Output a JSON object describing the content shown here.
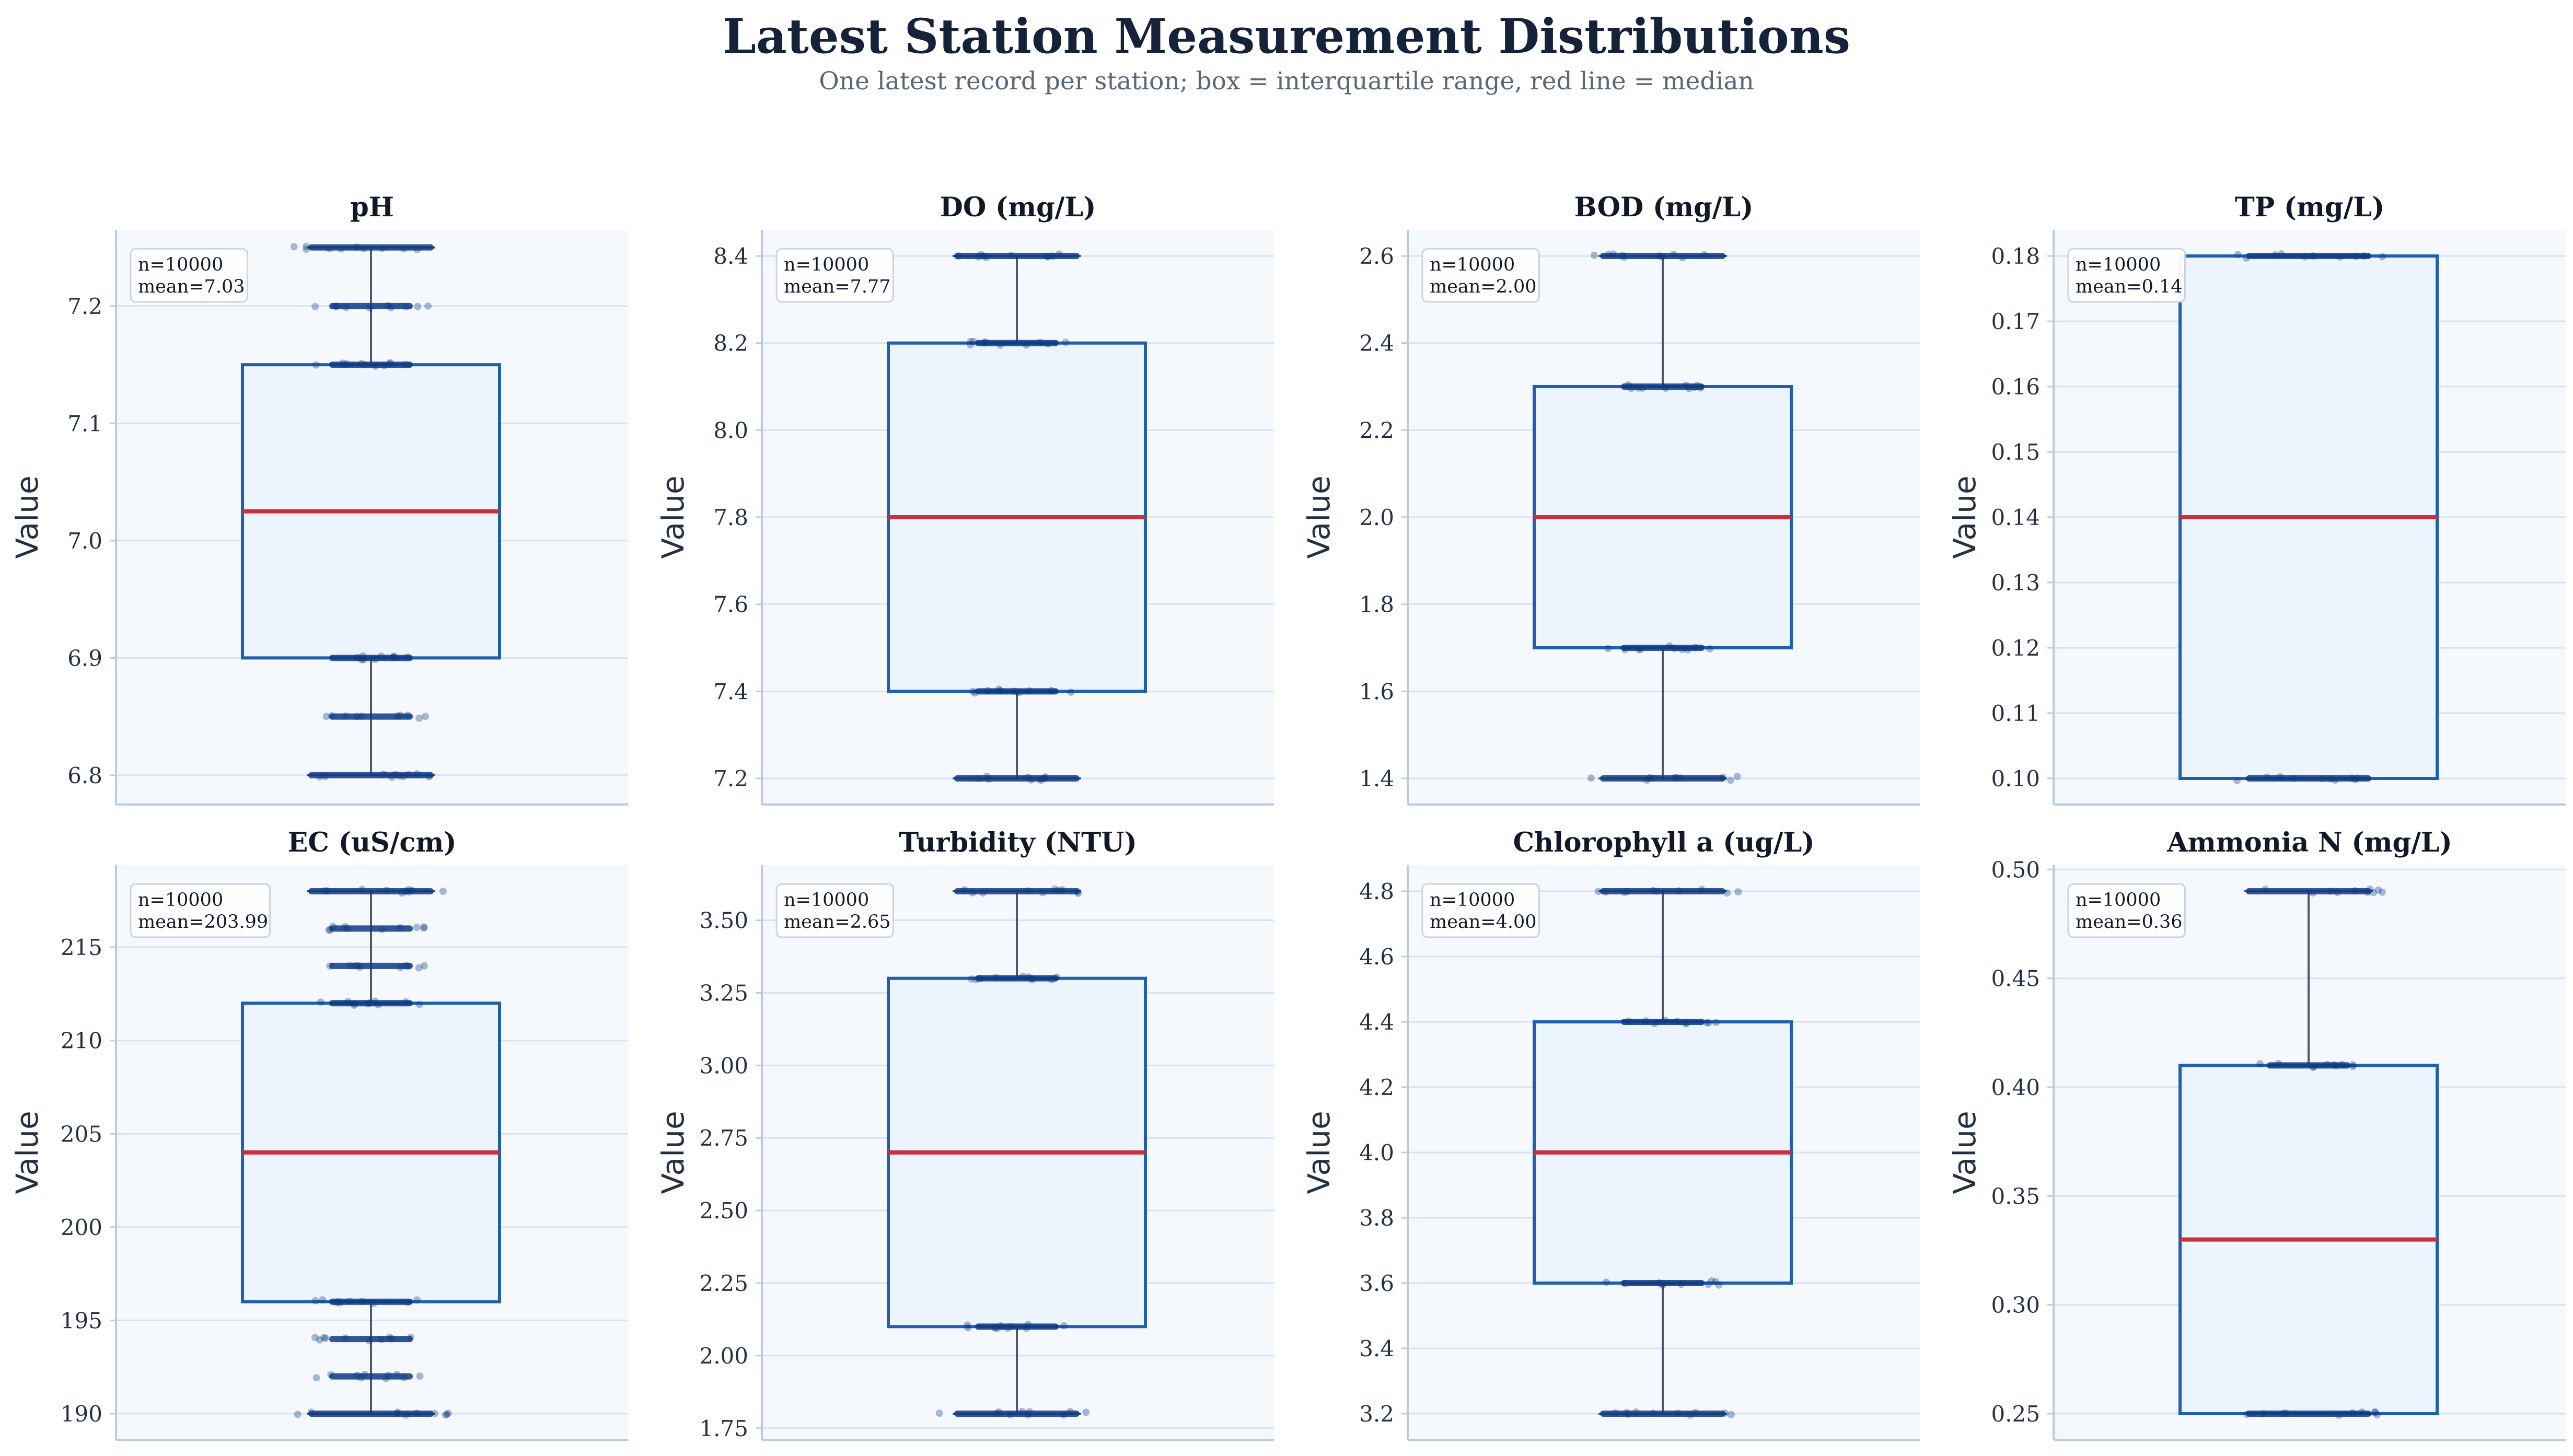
{
  "title": "Latest Station Measurement Distributions",
  "subtitle": "One latest record per station; box = interquartile range, red line = median",
  "colors": {
    "panel_bg": "#f5f9fe",
    "grid": "#d7e3f0",
    "axis": "#b9cbe0",
    "box_fill": "#ecf4fd",
    "box_edge": "#1f5fae",
    "median": "#c8313b",
    "whisker": "#4a5a6e",
    "point": "#0d3a82"
  },
  "chart_data": [
    {
      "type": "box",
      "title": "pH",
      "ylabel": "Value",
      "ylim": [
        6.775,
        7.265
      ],
      "yticks": [
        6.8,
        6.9,
        7.0,
        7.1,
        7.2
      ],
      "tick_decimals": 1,
      "n": 10000,
      "mean": 7.03,
      "n_text": "n=10000",
      "mean_text": "mean=7.03",
      "min": 6.8,
      "q1": 6.9,
      "median": 7.025,
      "q3": 7.15,
      "max": 7.25,
      "levels": [
        6.8,
        6.85,
        6.9,
        7.15,
        7.2,
        7.25
      ]
    },
    {
      "type": "box",
      "title": "DO (mg/L)",
      "ylabel": "Value",
      "ylim": [
        7.14,
        8.46
      ],
      "yticks": [
        7.2,
        7.4,
        7.6,
        7.8,
        8.0,
        8.2,
        8.4
      ],
      "tick_decimals": 1,
      "n": 10000,
      "mean": 7.77,
      "n_text": "n=10000",
      "mean_text": "mean=7.77",
      "min": 7.2,
      "q1": 7.4,
      "median": 7.8,
      "q3": 8.2,
      "max": 8.4,
      "levels": [
        7.2,
        7.4,
        8.2,
        8.4
      ]
    },
    {
      "type": "box",
      "title": "BOD (mg/L)",
      "ylabel": "Value",
      "ylim": [
        1.34,
        2.66
      ],
      "yticks": [
        1.4,
        1.6,
        1.8,
        2.0,
        2.2,
        2.4,
        2.6
      ],
      "tick_decimals": 1,
      "n": 10000,
      "mean": 2.0,
      "n_text": "n=10000",
      "mean_text": "mean=2.00",
      "min": 1.4,
      "q1": 1.7,
      "median": 2.0,
      "q3": 2.3,
      "max": 2.6,
      "levels": [
        1.4,
        1.7,
        2.3,
        2.6
      ]
    },
    {
      "type": "box",
      "title": "TP (mg/L)",
      "ylabel": "Value",
      "ylim": [
        0.096,
        0.184
      ],
      "yticks": [
        0.1,
        0.11,
        0.12,
        0.13,
        0.14,
        0.15,
        0.16,
        0.17,
        0.18
      ],
      "tick_decimals": 2,
      "n": 10000,
      "mean": 0.14,
      "n_text": "n=10000",
      "mean_text": "mean=0.14",
      "min": 0.1,
      "q1": 0.1,
      "median": 0.14,
      "q3": 0.18,
      "max": 0.18,
      "levels": [
        0.1,
        0.18
      ]
    },
    {
      "type": "box",
      "title": "EC (uS/cm)",
      "ylabel": "Value",
      "ylim": [
        188.6,
        219.4
      ],
      "yticks": [
        190,
        195,
        200,
        205,
        210,
        215
      ],
      "tick_decimals": 0,
      "n": 10000,
      "mean": 203.99,
      "n_text": "n=10000",
      "mean_text": "mean=203.99",
      "min": 190,
      "q1": 196,
      "median": 204,
      "q3": 212,
      "max": 218,
      "levels": [
        190,
        192,
        194,
        196,
        212,
        214,
        216,
        218
      ]
    },
    {
      "type": "box",
      "title": "Turbidity (NTU)",
      "ylabel": "Value",
      "ylim": [
        1.71,
        3.69
      ],
      "yticks": [
        1.75,
        2.0,
        2.25,
        2.5,
        2.75,
        3.0,
        3.25,
        3.5
      ],
      "tick_decimals": 2,
      "n": 10000,
      "mean": 2.65,
      "n_text": "n=10000",
      "mean_text": "mean=2.65",
      "min": 1.8,
      "q1": 2.1,
      "median": 2.7,
      "q3": 3.3,
      "max": 3.6,
      "levels": [
        1.8,
        2.1,
        3.3,
        3.6
      ]
    },
    {
      "type": "box",
      "title": "Chlorophyll a (ug/L)",
      "ylabel": "Value",
      "ylim": [
        3.12,
        4.88
      ],
      "yticks": [
        3.2,
        3.4,
        3.6,
        3.8,
        4.0,
        4.2,
        4.4,
        4.6,
        4.8
      ],
      "tick_decimals": 1,
      "n": 10000,
      "mean": 4.0,
      "n_text": "n=10000",
      "mean_text": "mean=4.00",
      "min": 3.2,
      "q1": 3.6,
      "median": 4.0,
      "q3": 4.4,
      "max": 4.8,
      "levels": [
        3.2,
        3.6,
        4.4,
        4.8
      ]
    },
    {
      "type": "box",
      "title": "Ammonia N (mg/L)",
      "ylabel": "Value",
      "ylim": [
        0.238,
        0.502
      ],
      "yticks": [
        0.25,
        0.3,
        0.35,
        0.4,
        0.45,
        0.5
      ],
      "tick_decimals": 2,
      "n": 10000,
      "mean": 0.36,
      "n_text": "n=10000",
      "mean_text": "mean=0.36",
      "min": 0.25,
      "q1": 0.25,
      "median": 0.33,
      "q3": 0.41,
      "max": 0.49,
      "levels": [
        0.25,
        0.41,
        0.49
      ]
    }
  ]
}
